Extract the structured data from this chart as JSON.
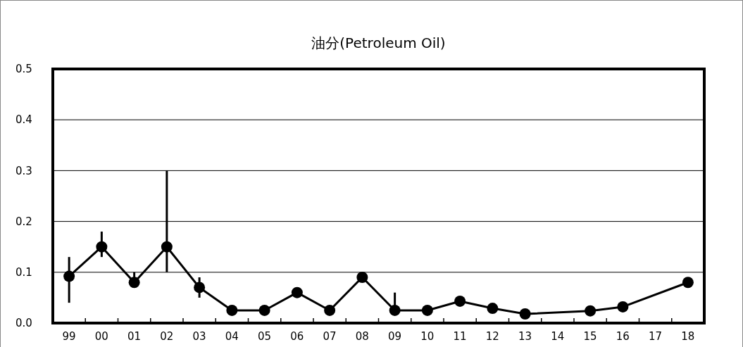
{
  "chart_data": {
    "type": "line",
    "title": "油分(Petroleum Oil)",
    "categories": [
      "99",
      "00",
      "01",
      "02",
      "03",
      "04",
      "05",
      "06",
      "07",
      "08",
      "09",
      "10",
      "11",
      "12",
      "13",
      "14",
      "15",
      "16",
      "17",
      "18"
    ],
    "values": [
      0.092,
      0.15,
      0.08,
      0.15,
      0.07,
      0.025,
      0.025,
      0.06,
      0.025,
      0.09,
      0.025,
      0.025,
      0.043,
      0.029,
      0.018,
      null,
      0.024,
      0.032,
      null,
      0.08
    ],
    "errors": [
      [
        0.04,
        0.13
      ],
      [
        0.13,
        0.18
      ],
      [
        0.08,
        0.1
      ],
      [
        0.1,
        0.3
      ],
      [
        0.05,
        0.09
      ],
      null,
      null,
      null,
      null,
      null,
      [
        0.025,
        0.06
      ],
      null,
      null,
      null,
      null,
      null,
      null,
      null,
      null,
      null
    ],
    "color": "#000000",
    "ylim": [
      0,
      0.5
    ],
    "yticks": [
      {
        "value": 0,
        "label": "0.0"
      },
      0.1,
      0.2,
      0.3,
      0.4,
      0.5
    ],
    "grid": "y",
    "marker": "circle",
    "line_style": "solid"
  }
}
